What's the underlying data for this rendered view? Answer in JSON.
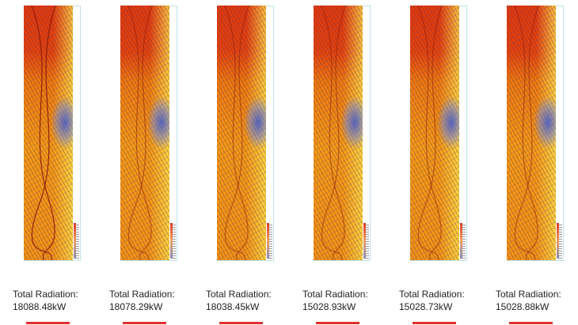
{
  "panels": [
    {
      "label": "Total Radiation:",
      "value": "18088.48kW"
    },
    {
      "label": "Total Radiation:",
      "value": "18078.29kW"
    },
    {
      "label": "Total Radiation:",
      "value": "18038.45kW"
    },
    {
      "label": "Total Radiation:",
      "value": "15028.93kW"
    },
    {
      "label": "Total Radiation:",
      "value": "15028.73kW"
    },
    {
      "label": "Total Radiation:",
      "value": "15028.88kW"
    }
  ],
  "colors": {
    "hot": "#e2380f",
    "warm": "#f59b18",
    "cool": "#465ac8",
    "bar": "#e23030"
  }
}
